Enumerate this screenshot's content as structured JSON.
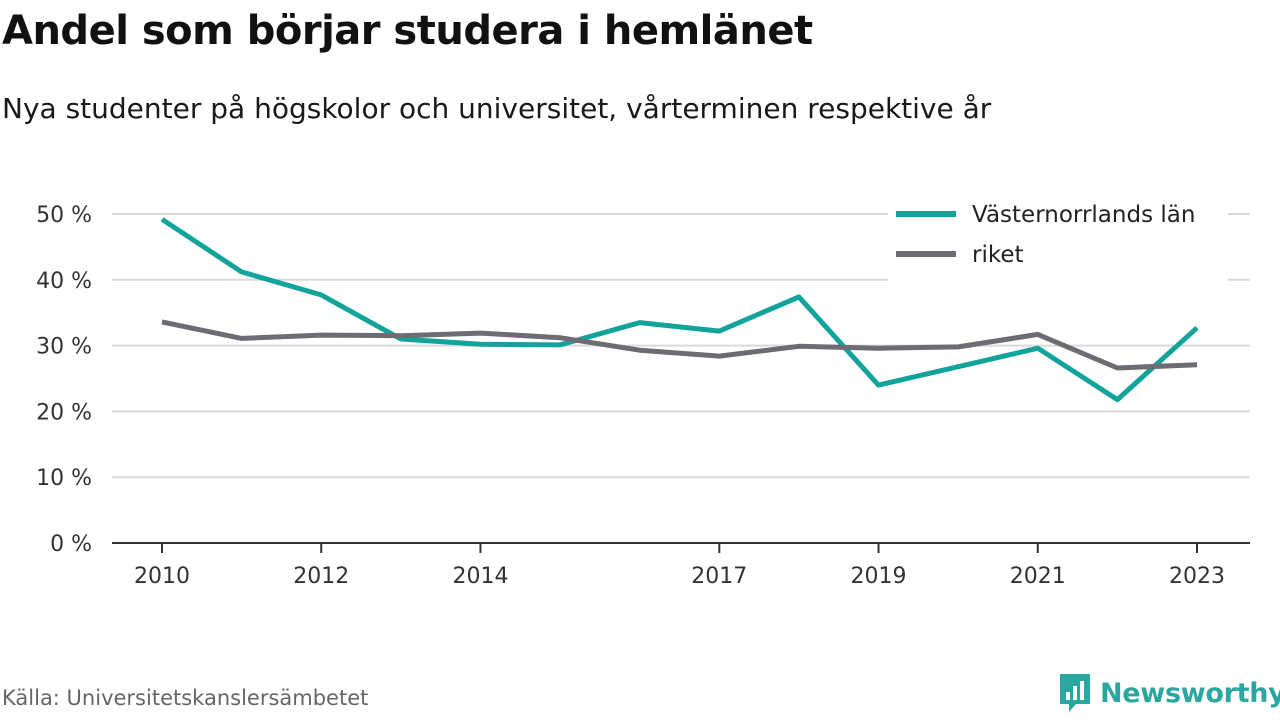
{
  "header": {
    "title": "Andel som börjar studera i hemlänet",
    "subtitle": "Nya studenter på högskolor och universitet, vårterminen respektive år"
  },
  "footer": {
    "source": "Källa: Universitetskanslersämbetet",
    "brand_name": "Newsworthy",
    "brand_icon": "bar-chart-bubble-icon"
  },
  "colors": {
    "lan": "#12a39b",
    "riket": "#6e6b72",
    "grid": "#d9d9d9",
    "axis": "#333333",
    "brand": "#2aa7a0"
  },
  "chart_data": {
    "type": "line",
    "title": "Andel som börjar studera i hemlänet",
    "subtitle": "Nya studenter på högskolor och universitet, vårterminen respektive år",
    "xlabel": "",
    "ylabel": "",
    "x": [
      2010,
      2011,
      2012,
      2013,
      2014,
      2015,
      2016,
      2017,
      2018,
      2019,
      2020,
      2021,
      2022,
      2023
    ],
    "x_ticks": [
      2010,
      2012,
      2014,
      2017,
      2019,
      2021,
      2023
    ],
    "x_tick_labels": [
      "2010",
      "2012",
      "2014",
      "2017",
      "2019",
      "2021",
      "2023"
    ],
    "y_ticks": [
      0,
      10,
      20,
      30,
      40,
      50
    ],
    "y_tick_labels": [
      "0 %",
      "10 %",
      "20 %",
      "30 %",
      "40 %",
      "50 %"
    ],
    "ylim": [
      0,
      50
    ],
    "grid": true,
    "legend_position": "top-right",
    "series": [
      {
        "name": "Västernorrlands län",
        "color": "#12a39b",
        "values": [
          49.2,
          41.2,
          37.7,
          31.0,
          30.2,
          30.1,
          33.5,
          32.2,
          37.4,
          24.0,
          26.8,
          29.6,
          21.8,
          32.7
        ]
      },
      {
        "name": "riket",
        "color": "#6e6b72",
        "values": [
          33.6,
          31.1,
          31.6,
          31.5,
          31.9,
          31.2,
          29.3,
          28.4,
          29.9,
          29.6,
          29.8,
          31.7,
          26.6,
          27.1
        ]
      }
    ]
  }
}
